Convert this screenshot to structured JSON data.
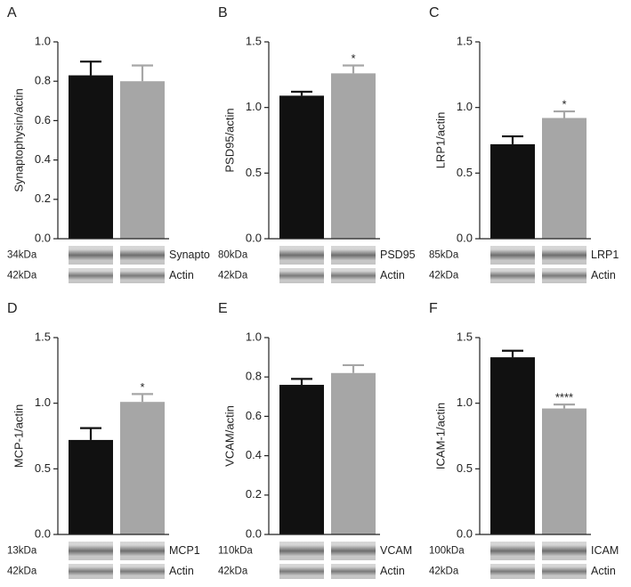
{
  "chart_data": [
    {
      "type": "bar",
      "panel": "A",
      "ylabel": "Synaptophysin/actin",
      "categories": [
        null,
        null
      ],
      "values": [
        0.83,
        0.8
      ],
      "errors": [
        0.07,
        0.08
      ],
      "colors": [
        "#111111",
        "#a6a6a6"
      ],
      "ylim": [
        0,
        1.0
      ],
      "yticks": [
        {
          "value": 0,
          "label": "0.0"
        },
        0.2,
        0.4,
        0.6,
        0.8,
        {
          "value": 1,
          "label": "1.0"
        }
      ],
      "blots": [
        {
          "kda": "34kDa",
          "label": "Synapto"
        },
        {
          "kda": "42kDa",
          "label": "Actin"
        }
      ]
    },
    {
      "type": "bar",
      "panel": "B",
      "ylabel": "PSD95/actin",
      "categories": [
        null,
        null
      ],
      "values": [
        1.09,
        1.26
      ],
      "errors": [
        0.03,
        0.06
      ],
      "colors": [
        "#111111",
        "#a6a6a6"
      ],
      "significance": "*",
      "ylim": [
        0,
        1.5
      ],
      "yticks": [
        {
          "value": 0,
          "label": "0.0"
        },
        0.5,
        {
          "value": 1,
          "label": "1.0"
        },
        1.5
      ],
      "blots": [
        {
          "kda": "80kDa",
          "label": "PSD95"
        },
        {
          "kda": "42kDa",
          "label": "Actin"
        }
      ]
    },
    {
      "type": "bar",
      "panel": "C",
      "ylabel": "LRP1/actin",
      "categories": [
        null,
        null
      ],
      "values": [
        0.72,
        0.92
      ],
      "errors": [
        0.06,
        0.05
      ],
      "colors": [
        "#111111",
        "#a6a6a6"
      ],
      "significance": "*",
      "ylim": [
        0,
        1.5
      ],
      "yticks": [
        {
          "value": 0,
          "label": "0.0"
        },
        0.5,
        {
          "value": 1,
          "label": "1.0"
        },
        1.5
      ],
      "blots": [
        {
          "kda": "85kDa",
          "label": "LRP1"
        },
        {
          "kda": "42kDa",
          "label": "Actin"
        }
      ]
    },
    {
      "type": "bar",
      "panel": "D",
      "ylabel": "MCP-1/actin",
      "categories": [
        null,
        null
      ],
      "values": [
        0.72,
        1.01
      ],
      "errors": [
        0.09,
        0.06
      ],
      "colors": [
        "#111111",
        "#a6a6a6"
      ],
      "significance": "*",
      "ylim": [
        0,
        1.5
      ],
      "yticks": [
        {
          "value": 0,
          "label": "0.0"
        },
        0.5,
        {
          "value": 1,
          "label": "1.0"
        },
        1.5
      ],
      "blots": [
        {
          "kda": "13kDa",
          "label": "MCP1"
        },
        {
          "kda": "42kDa",
          "label": "Actin"
        }
      ]
    },
    {
      "type": "bar",
      "panel": "E",
      "ylabel": "VCAM/actin",
      "categories": [
        null,
        null
      ],
      "values": [
        0.76,
        0.82
      ],
      "errors": [
        0.03,
        0.04
      ],
      "colors": [
        "#111111",
        "#a6a6a6"
      ],
      "ylim": [
        0,
        1.0
      ],
      "yticks": [
        {
          "value": 0,
          "label": "0.0"
        },
        0.2,
        0.4,
        0.6,
        0.8,
        {
          "value": 1,
          "label": "1.0"
        }
      ],
      "blots": [
        {
          "kda": "110kDa",
          "label": "VCAM"
        },
        {
          "kda": "42kDa",
          "label": "Actin"
        }
      ]
    },
    {
      "type": "bar",
      "panel": "F",
      "ylabel": "ICAM-1/actin",
      "categories": [
        null,
        null
      ],
      "values": [
        1.35,
        0.96
      ],
      "errors": [
        0.05,
        0.03
      ],
      "colors": [
        "#111111",
        "#a6a6a6"
      ],
      "significance": "****",
      "ylim": [
        0,
        1.5
      ],
      "yticks": [
        {
          "value": 0,
          "label": "0.0"
        },
        0.5,
        {
          "value": 1,
          "label": "1.0"
        },
        1.5
      ],
      "blots": [
        {
          "kda": "100kDa",
          "label": "ICAM"
        },
        {
          "kda": "42kDa",
          "label": "Actin"
        }
      ]
    }
  ]
}
